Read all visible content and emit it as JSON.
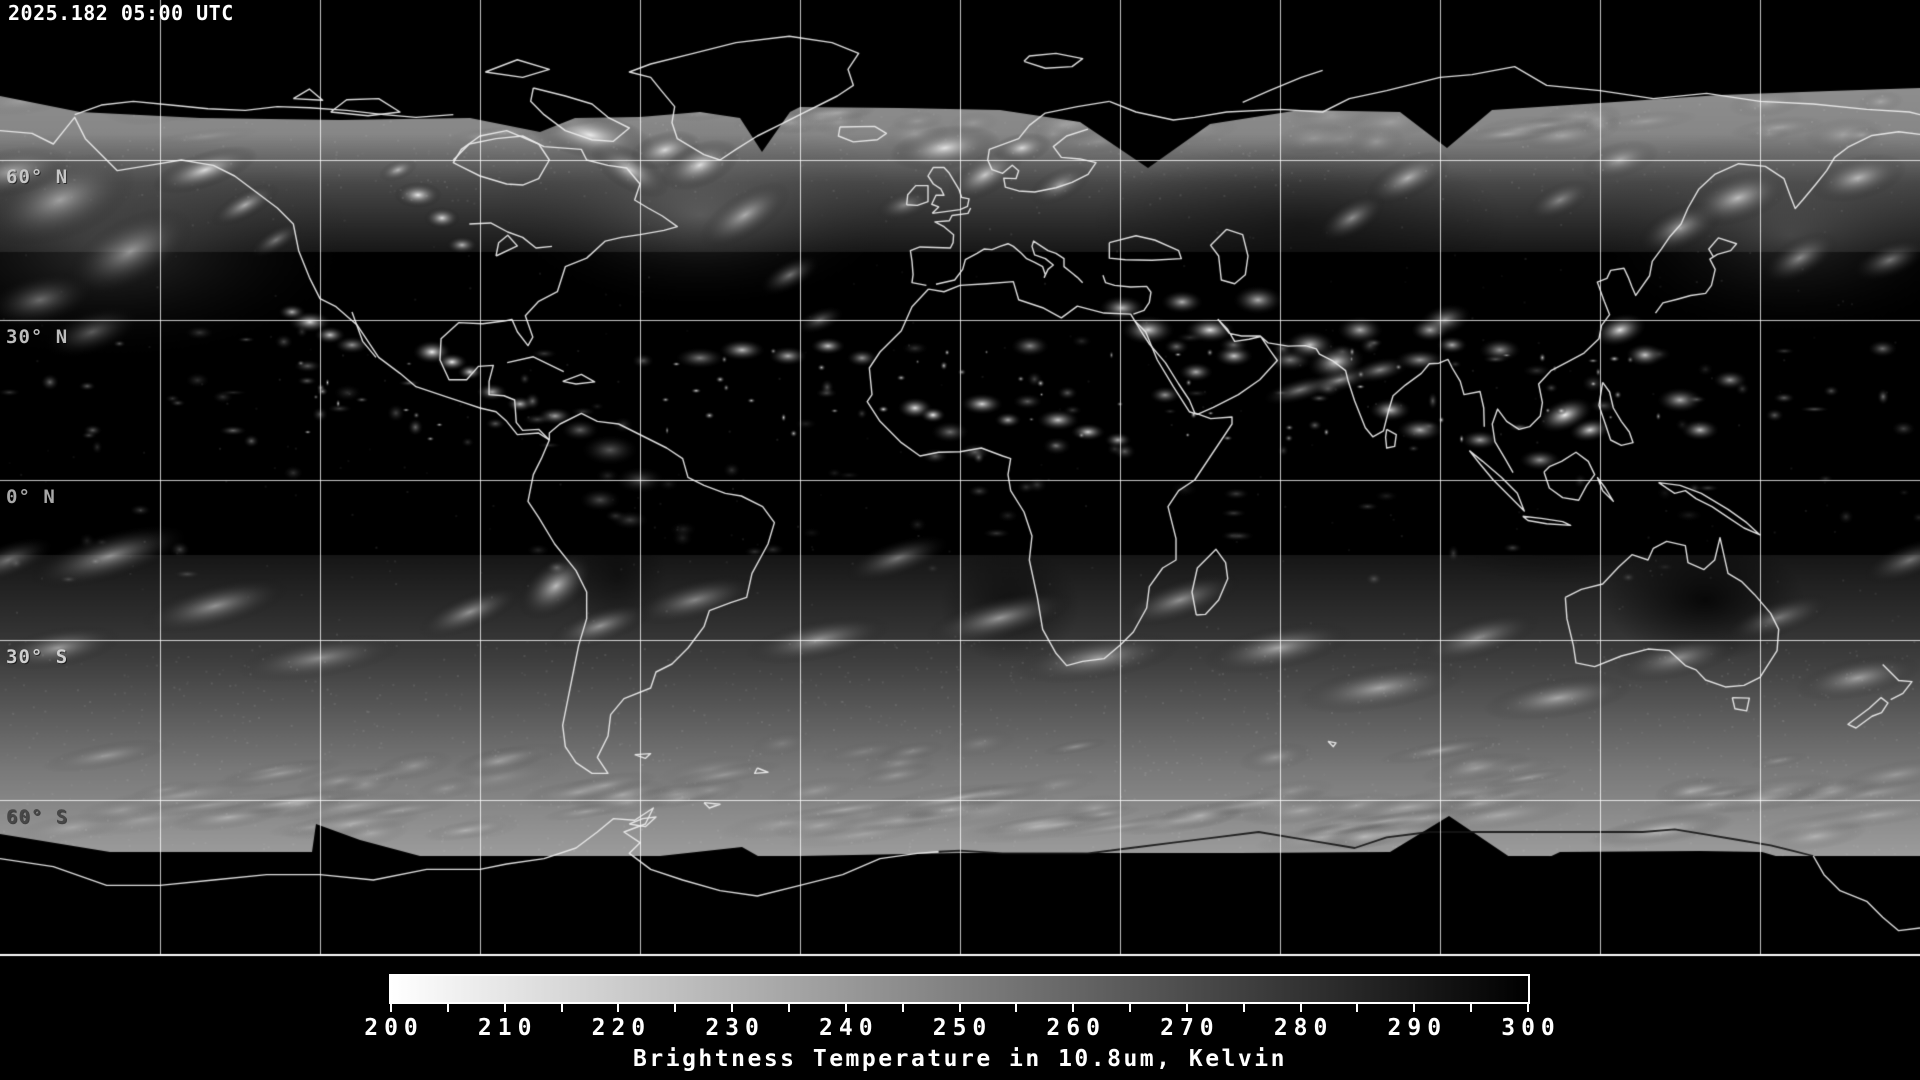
{
  "header": {
    "timestamp": "2025.182 05:00 UTC"
  },
  "map": {
    "projection": "equirectangular",
    "description": "Global infrared satellite composite, grayscale brightness temperature",
    "latitude_labels": [
      {
        "text": "60° N",
        "lat": 60,
        "color": "#c6c6c6"
      },
      {
        "text": "30° N",
        "lat": 30,
        "color": "#bdbdbd"
      },
      {
        "text": "0° N",
        "lat": 0,
        "color": "#a8a8a8"
      },
      {
        "text": "30° S",
        "lat": -30,
        "color": "#cfcfcf"
      },
      {
        "text": "60° S",
        "lat": -60,
        "color": "#474747"
      }
    ],
    "grid": {
      "lon_step_deg": 30,
      "lat_step_deg": 30,
      "color": "#ffffff"
    }
  },
  "colorbar": {
    "min": 200,
    "max": 300,
    "major_tick_step": 10,
    "minor_tick_step": 5,
    "tick_labels": [
      "200",
      "210",
      "220",
      "230",
      "240",
      "250",
      "260",
      "270",
      "280",
      "290",
      "300"
    ],
    "caption": "Brightness Temperature in 10.8um, Kelvin",
    "gradient_start_color": "#ffffff",
    "gradient_end_color": "#000000",
    "border_color": "#ffffff"
  }
}
